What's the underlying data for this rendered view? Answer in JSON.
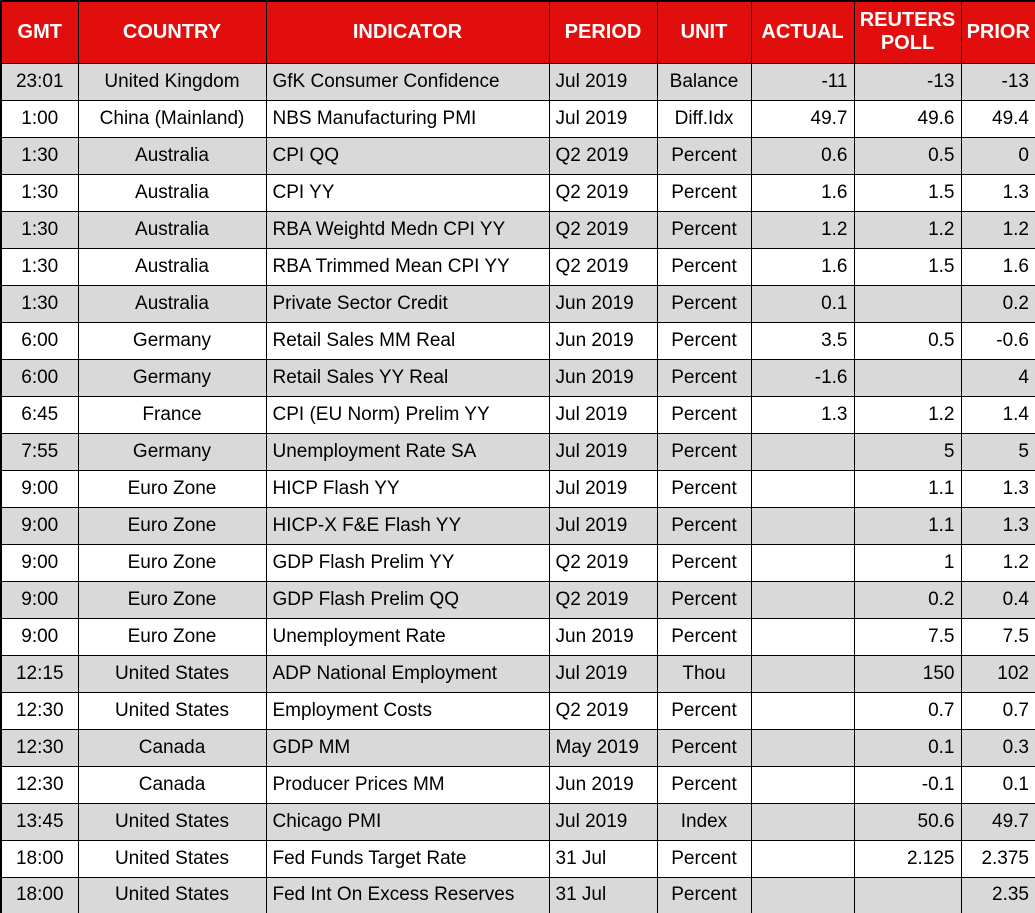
{
  "colors": {
    "header_bg": "#E20D0D",
    "header_text": "#FFFFFF",
    "row_bg": "#FFFFFF",
    "row_alt_bg": "#D9D9D9",
    "grid": "#000000",
    "text": "#000000"
  },
  "chart_data": {
    "type": "table",
    "columns": [
      {
        "key": "gmt",
        "label": "GMT"
      },
      {
        "key": "country",
        "label": "COUNTRY"
      },
      {
        "key": "indicator",
        "label": "INDICATOR"
      },
      {
        "key": "period",
        "label": "PERIOD"
      },
      {
        "key": "unit",
        "label": "UNIT"
      },
      {
        "key": "actual",
        "label": "ACTUAL"
      },
      {
        "key": "poll",
        "label": "REUTERS POLL"
      },
      {
        "key": "prior",
        "label": "PRIOR"
      }
    ],
    "rows": [
      {
        "gmt": "23:01",
        "country": "United Kingdom",
        "indicator": "GfK Consumer Confidence",
        "period": "Jul 2019",
        "unit": "Balance",
        "actual": "-11",
        "poll": "-13",
        "prior": "-13"
      },
      {
        "gmt": "1:00",
        "country": "China (Mainland)",
        "indicator": "NBS Manufacturing PMI",
        "period": "Jul 2019",
        "unit": "Diff.Idx",
        "actual": "49.7",
        "poll": "49.6",
        "prior": "49.4"
      },
      {
        "gmt": "1:30",
        "country": "Australia",
        "indicator": "CPI QQ",
        "period": "Q2 2019",
        "unit": "Percent",
        "actual": "0.6",
        "poll": "0.5",
        "prior": "0"
      },
      {
        "gmt": "1:30",
        "country": "Australia",
        "indicator": "CPI YY",
        "period": "Q2 2019",
        "unit": "Percent",
        "actual": "1.6",
        "poll": "1.5",
        "prior": "1.3"
      },
      {
        "gmt": "1:30",
        "country": "Australia",
        "indicator": "RBA Weightd Medn CPI YY",
        "period": "Q2 2019",
        "unit": "Percent",
        "actual": "1.2",
        "poll": "1.2",
        "prior": "1.2"
      },
      {
        "gmt": "1:30",
        "country": "Australia",
        "indicator": "RBA Trimmed Mean CPI YY",
        "period": "Q2 2019",
        "unit": "Percent",
        "actual": "1.6",
        "poll": "1.5",
        "prior": "1.6"
      },
      {
        "gmt": "1:30",
        "country": "Australia",
        "indicator": "Private Sector Credit",
        "period": "Jun 2019",
        "unit": "Percent",
        "actual": "0.1",
        "poll": "",
        "prior": "0.2"
      },
      {
        "gmt": "6:00",
        "country": "Germany",
        "indicator": "Retail Sales MM Real",
        "period": "Jun 2019",
        "unit": "Percent",
        "actual": "3.5",
        "poll": "0.5",
        "prior": "-0.6"
      },
      {
        "gmt": "6:00",
        "country": "Germany",
        "indicator": "Retail Sales YY Real",
        "period": "Jun 2019",
        "unit": "Percent",
        "actual": "-1.6",
        "poll": "",
        "prior": "4"
      },
      {
        "gmt": "6:45",
        "country": "France",
        "indicator": "CPI (EU Norm) Prelim YY",
        "period": "Jul 2019",
        "unit": "Percent",
        "actual": "1.3",
        "poll": "1.2",
        "prior": "1.4"
      },
      {
        "gmt": "7:55",
        "country": "Germany",
        "indicator": "Unemployment Rate SA",
        "period": "Jul 2019",
        "unit": "Percent",
        "actual": "",
        "poll": "5",
        "prior": "5"
      },
      {
        "gmt": "9:00",
        "country": "Euro Zone",
        "indicator": "HICP Flash YY",
        "period": "Jul 2019",
        "unit": "Percent",
        "actual": "",
        "poll": "1.1",
        "prior": "1.3"
      },
      {
        "gmt": "9:00",
        "country": "Euro Zone",
        "indicator": "HICP-X F&E Flash YY",
        "period": "Jul 2019",
        "unit": "Percent",
        "actual": "",
        "poll": "1.1",
        "prior": "1.3"
      },
      {
        "gmt": "9:00",
        "country": "Euro Zone",
        "indicator": "GDP Flash Prelim YY",
        "period": "Q2 2019",
        "unit": "Percent",
        "actual": "",
        "poll": "1",
        "prior": "1.2"
      },
      {
        "gmt": "9:00",
        "country": "Euro Zone",
        "indicator": "GDP Flash Prelim QQ",
        "period": "Q2 2019",
        "unit": "Percent",
        "actual": "",
        "poll": "0.2",
        "prior": "0.4"
      },
      {
        "gmt": "9:00",
        "country": "Euro Zone",
        "indicator": "Unemployment Rate",
        "period": "Jun 2019",
        "unit": "Percent",
        "actual": "",
        "poll": "7.5",
        "prior": "7.5"
      },
      {
        "gmt": "12:15",
        "country": "United States",
        "indicator": "ADP National Employment",
        "period": "Jul 2019",
        "unit": "Thou",
        "actual": "",
        "poll": "150",
        "prior": "102"
      },
      {
        "gmt": "12:30",
        "country": "United States",
        "indicator": "Employment Costs",
        "period": "Q2 2019",
        "unit": "Percent",
        "actual": "",
        "poll": "0.7",
        "prior": "0.7"
      },
      {
        "gmt": "12:30",
        "country": "Canada",
        "indicator": "GDP MM",
        "period": "May 2019",
        "unit": "Percent",
        "actual": "",
        "poll": "0.1",
        "prior": "0.3"
      },
      {
        "gmt": "12:30",
        "country": "Canada",
        "indicator": "Producer Prices MM",
        "period": "Jun 2019",
        "unit": "Percent",
        "actual": "",
        "poll": "-0.1",
        "prior": "0.1"
      },
      {
        "gmt": "13:45",
        "country": "United States",
        "indicator": "Chicago PMI",
        "period": "Jul 2019",
        "unit": "Index",
        "actual": "",
        "poll": "50.6",
        "prior": "49.7"
      },
      {
        "gmt": "18:00",
        "country": "United States",
        "indicator": "Fed Funds Target Rate",
        "period": "31 Jul",
        "unit": "Percent",
        "actual": "",
        "poll": "2.125",
        "prior": "2.375"
      },
      {
        "gmt": "18:00",
        "country": "United States",
        "indicator": "Fed Int On Excess Reserves",
        "period": "31 Jul",
        "unit": "Percent",
        "actual": "",
        "poll": "",
        "prior": "2.35"
      }
    ]
  }
}
